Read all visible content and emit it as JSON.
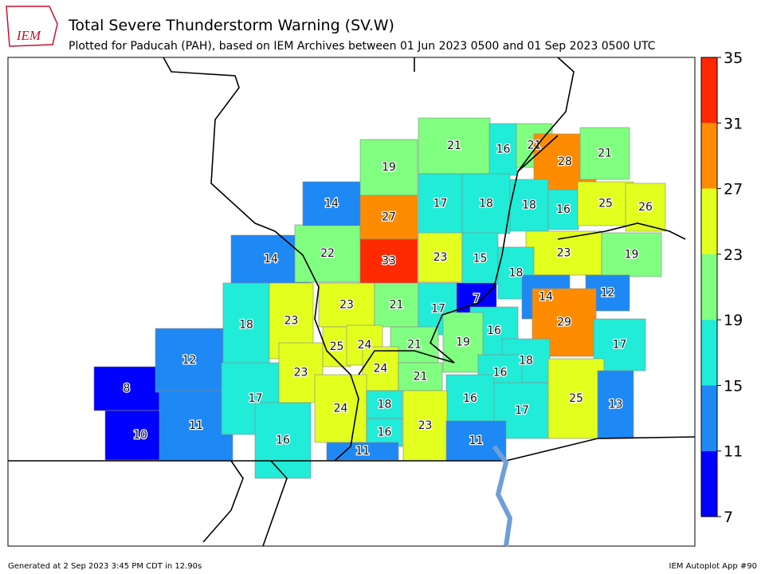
{
  "header": {
    "logo": "IEM",
    "title": "Total Severe Thunderstorm Warning (SV.W)",
    "subtitle": "Plotted for Paducah (PAH), based on IEM Archives  between 01 Jun 2023 0500 and 01 Sep 2023 0500 UTC"
  },
  "map": {
    "values": [
      8,
      10,
      12,
      11,
      18,
      17,
      16,
      14,
      22,
      14,
      27,
      19,
      33,
      21,
      16,
      21,
      28,
      21,
      17,
      18,
      18,
      16,
      25,
      26,
      23,
      15,
      23,
      19,
      18,
      23,
      23,
      21,
      17,
      7,
      14,
      12,
      16,
      29,
      17,
      25,
      24,
      21,
      19,
      23,
      24,
      21,
      18,
      16,
      24,
      18,
      16,
      17,
      25,
      13,
      23,
      16,
      11,
      11
    ]
  },
  "colorbar": {
    "ticks": [
      7,
      11,
      15,
      19,
      23,
      27,
      31,
      35
    ],
    "colors": [
      "#0000ff",
      "#1e88f5",
      "#20ecd8",
      "#80ff80",
      "#e2ff1e",
      "#ff8c00",
      "#ff2a00"
    ]
  },
  "footer": {
    "left": "Generated at 2 Sep 2023 3:45 PM CDT in 12.90s",
    "right": "IEM Autoplot App #90"
  }
}
